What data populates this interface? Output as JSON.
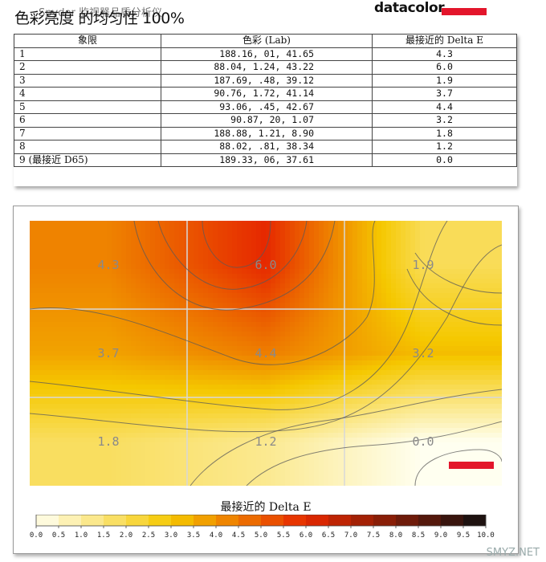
{
  "header": {
    "title_overlay": "Spyder 监视器品质分析仪",
    "title": "色彩亮度 的均匀性 100%",
    "logo_text": "datacolor"
  },
  "table": {
    "headers": [
      "象限",
      "色彩 (Lab)",
      "最接近的 Delta E"
    ],
    "rows": [
      {
        "q": "1",
        "lab": "188.16,     01,   41.65",
        "de": "4.3"
      },
      {
        "q": "2",
        "lab": "88.04,   1.24,   43.22",
        "de": "6.0"
      },
      {
        "q": "3",
        "lab": "187.69,    .48,   39.12",
        "de": "1.9"
      },
      {
        "q": "4",
        "lab": "90.76,   1.72,   41.14",
        "de": "3.7"
      },
      {
        "q": "5",
        "lab": "93.06,    .45,   42.67",
        "de": "4.4"
      },
      {
        "q": "6",
        "lab": "90.87,     20,    1.07",
        "de": "3.2"
      },
      {
        "q": "7",
        "lab": "188.88,   1.21,    8.90",
        "de": "1.8"
      },
      {
        "q": "8",
        "lab": "88.02,    .81,   38.34",
        "de": "1.2"
      },
      {
        "q": "9 (最接近 D65)",
        "lab": "189.33,     06,   37.61",
        "de": "0.0"
      }
    ]
  },
  "chart_data": {
    "type": "heatmap",
    "grid": {
      "rows": 3,
      "cols": 3
    },
    "values": [
      [
        4.3,
        6.0,
        1.9
      ],
      [
        3.7,
        4.4,
        3.2
      ],
      [
        1.8,
        1.2,
        0.0
      ]
    ],
    "labels": [
      [
        "4.3",
        "6.0",
        "1.9"
      ],
      [
        "3.7",
        "4.4",
        "3.2"
      ],
      [
        "1.8",
        "1.2",
        "0.0"
      ]
    ],
    "scale_title": "最接近的 Delta E",
    "scale_ticks": [
      "0.0",
      "0.5",
      "1.0",
      "1.5",
      "2.0",
      "2.5",
      "3.0",
      "3.5",
      "4.0",
      "4.5",
      "5.0",
      "5.5",
      "6.0",
      "6.5",
      "7.0",
      "7.5",
      "8.0",
      "8.5",
      "9.0",
      "9.5",
      "10.0"
    ],
    "scale_range": [
      0,
      10
    ],
    "colors": {
      "low": "#fffff0",
      "mid": "#f5c800",
      "high": "#e62800",
      "max": "#111111",
      "marker": "#e3152b"
    }
  },
  "watermark": "SMYZ.NET"
}
